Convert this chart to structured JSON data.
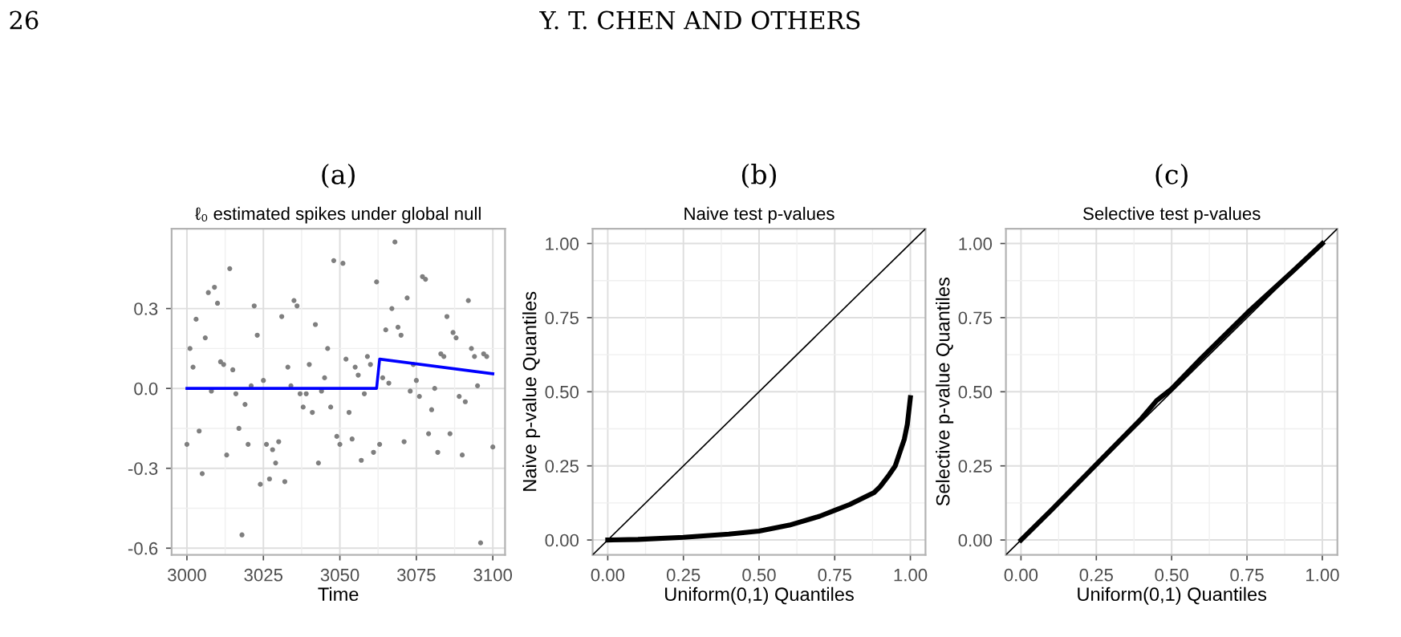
{
  "chart_data": [
    {
      "type": "scatter",
      "title": "(a)",
      "subtitle": "ℓ₀ estimated spikes under global null",
      "xlabel": "Time",
      "annotations": [
        "26",
        "Y. T. CHEN AND OTHERS"
      ],
      "series": [
        {
          "type": "scatter",
          "color": "#7f7f7f",
          "x": [
            3000,
            3001,
            3002,
            3003,
            3004,
            3005,
            3006,
            3007,
            3008,
            3009,
            3010,
            3011,
            3012,
            3013,
            3014,
            3015,
            3016,
            3017,
            3018,
            3019,
            3020,
            3021,
            3022,
            3023,
            3024,
            3025,
            3026,
            3027,
            3028,
            3029,
            3030,
            3031,
            3032,
            3033,
            3034,
            3035,
            3036,
            3037,
            3038,
            3039,
            3040,
            3041,
            3042,
            3043,
            3044,
            3045,
            3046,
            3047,
            3048,
            3049,
            3050,
            3051,
            3052,
            3053,
            3054,
            3055,
            3056,
            3057,
            3058,
            3059,
            3060,
            3061,
            3062,
            3063,
            3064,
            3065,
            3066,
            3067,
            3068,
            3069,
            3070,
            3071,
            3072,
            3073,
            3074,
            3075,
            3076,
            3077,
            3078,
            3079,
            3080,
            3081,
            3082,
            3083,
            3084,
            3085,
            3086,
            3087,
            3088,
            3089,
            3090,
            3091,
            3092,
            3093,
            3094,
            3095,
            3096,
            3097,
            3098,
            3100
          ],
          "values": [
            -0.21,
            0.15,
            0.08,
            0.26,
            -0.16,
            -0.32,
            0.19,
            0.36,
            -0.01,
            0.38,
            0.32,
            0.1,
            0.09,
            -0.25,
            0.45,
            0.07,
            -0.02,
            -0.15,
            -0.55,
            -0.06,
            -0.21,
            0.01,
            0.31,
            0.2,
            -0.36,
            0.03,
            -0.21,
            -0.34,
            -0.23,
            -0.28,
            -0.2,
            0.27,
            -0.35,
            0.08,
            0.01,
            0.33,
            0.31,
            -0.02,
            -0.07,
            -0.02,
            0.09,
            -0.09,
            0.24,
            -0.28,
            -0.01,
            0.04,
            0.15,
            -0.07,
            0.48,
            -0.18,
            -0.21,
            0.47,
            0.11,
            -0.09,
            -0.19,
            0.08,
            0.05,
            -0.27,
            -0.02,
            0.12,
            0.09,
            -0.24,
            0.4,
            -0.21,
            0.04,
            0.22,
            0.02,
            0.3,
            0.55,
            0.23,
            0.2,
            -0.2,
            0.34,
            -0.01,
            0.09,
            0.03,
            -0.03,
            0.42,
            0.41,
            -0.17,
            -0.08,
            0.0,
            -0.24,
            0.13,
            0.12,
            0.27,
            -0.17,
            0.21,
            0.19,
            -0.03,
            -0.25,
            -0.05,
            0.33,
            0.15,
            0.12,
            0.01,
            -0.58,
            0.13,
            0.12,
            -0.22
          ]
        },
        {
          "type": "line",
          "color": "#0000ff",
          "x": [
            3000,
            3062,
            3063,
            3100
          ],
          "values": [
            0,
            0,
            0.11,
            0.055
          ]
        }
      ],
      "grid": true,
      "xlim": [
        2995,
        3104
      ],
      "ylim": [
        -0.625,
        0.6
      ],
      "xticks": [
        3000,
        3025,
        3050,
        3075,
        3100
      ],
      "yticks": [
        -0.6,
        -0.3,
        {
          "value": 0,
          "label": "0.0"
        },
        0.3
      ]
    },
    {
      "type": "line",
      "title": "(b)",
      "subtitle": "Naive test p-values",
      "xlabel": "Uniform(0,1) Quantiles",
      "ylabel": "Naive p-value Quantiles",
      "series": [
        {
          "color": "#000000",
          "x": [
            0,
            0.1,
            0.25,
            0.4,
            0.5,
            0.6,
            0.7,
            0.75,
            0.8,
            0.85,
            0.88,
            0.9,
            0.93,
            0.95,
            0.97,
            0.98,
            0.99,
            1.0
          ],
          "values": [
            0,
            0.002,
            0.009,
            0.02,
            0.03,
            0.05,
            0.08,
            0.1,
            0.12,
            0.145,
            0.16,
            0.18,
            0.22,
            0.25,
            0.31,
            0.34,
            0.39,
            0.48
          ]
        },
        {
          "color": "#000000",
          "x": [
            -0.05,
            1.05
          ],
          "values": [
            -0.05,
            1.05
          ]
        }
      ],
      "grid": true,
      "xlim": [
        -0.05,
        1.05
      ],
      "ylim": [
        -0.05,
        1.05
      ],
      "xticks": [
        {
          "value": 0,
          "label": "0.00"
        },
        0.25,
        {
          "value": 0.5,
          "label": "0.50"
        },
        0.75,
        {
          "value": 1,
          "label": "1.00"
        }
      ],
      "yticks": [
        {
          "value": 0,
          "label": "0.00"
        },
        0.25,
        {
          "value": 0.5,
          "label": "0.50"
        },
        0.75,
        {
          "value": 1,
          "label": "1.00"
        }
      ]
    },
    {
      "type": "line",
      "title": "(c)",
      "subtitle": "Selective test p-values",
      "xlabel": "Uniform(0,1) Quantiles",
      "ylabel": "Selective p-value Quantiles",
      "series": [
        {
          "color": "#000000",
          "x": [
            0,
            0.1,
            0.25,
            0.4,
            0.45,
            0.5,
            0.6,
            0.75,
            0.9,
            1.0
          ],
          "values": [
            0,
            0.1,
            0.255,
            0.41,
            0.47,
            0.51,
            0.615,
            0.765,
            0.905,
            1.0
          ]
        },
        {
          "color": "#000000",
          "x": [
            -0.05,
            1.05
          ],
          "values": [
            -0.05,
            1.05
          ]
        }
      ],
      "grid": true,
      "xlim": [
        -0.05,
        1.05
      ],
      "ylim": [
        -0.05,
        1.05
      ],
      "xticks": [
        {
          "value": 0,
          "label": "0.00"
        },
        0.25,
        {
          "value": 0.5,
          "label": "0.50"
        },
        0.75,
        {
          "value": 1,
          "label": "1.00"
        }
      ],
      "yticks": [
        {
          "value": 0,
          "label": "0.00"
        },
        0.25,
        {
          "value": 0.5,
          "label": "0.50"
        },
        0.75,
        {
          "value": 1,
          "label": "1.00"
        }
      ]
    }
  ]
}
